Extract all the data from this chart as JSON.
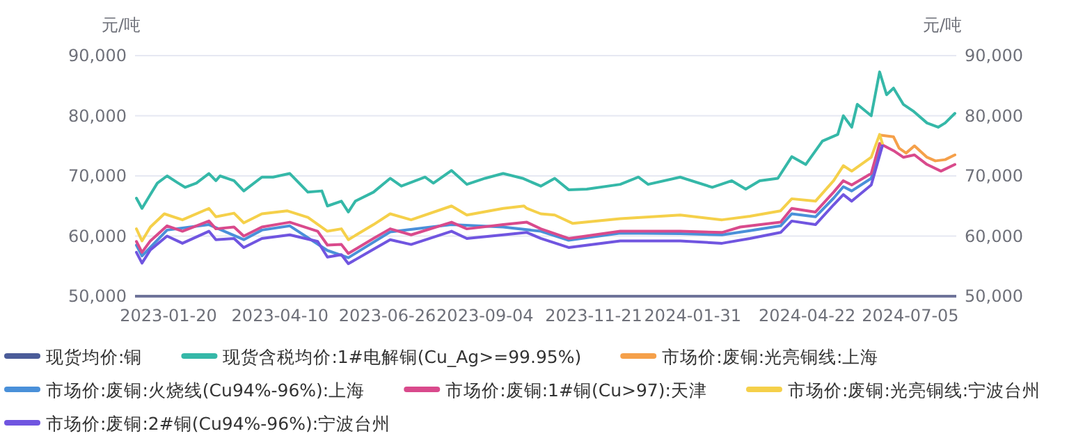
{
  "chart_data": {
    "type": "line",
    "ylabel": "元/吨",
    "y2label": "元/吨",
    "xlim": [
      "2022-12-27",
      "2024-08-07"
    ],
    "xticks": [
      "2023-01-20",
      "2023-04-10",
      "2023-06-26",
      "2023-09-04",
      "2023-11-21",
      "2024-01-31",
      "2024-04-22",
      "2024-07-05"
    ],
    "ylim": [
      50000,
      90000
    ],
    "yticks": [
      {
        "value": 50000,
        "label": "50,000"
      },
      {
        "value": 60000,
        "label": "60,000"
      },
      {
        "value": 70000,
        "label": "70,000"
      },
      {
        "value": 80000,
        "label": "80,000"
      },
      {
        "value": 90000,
        "label": "90,000"
      }
    ],
    "y2lim": [
      50000,
      90000
    ],
    "y2ticks": [
      {
        "value": 50000,
        "label": "50,000"
      },
      {
        "value": 60000,
        "label": "60,000"
      },
      {
        "value": 70000,
        "label": "70,000"
      },
      {
        "value": 80000,
        "label": "80,000"
      },
      {
        "value": 90000,
        "label": "90,000"
      }
    ],
    "grid": "y",
    "legend": "bottom",
    "marker": "none",
    "line_style": "solid",
    "series": [
      {
        "name": "现货均价:铜",
        "color": "#4b5c99"
      },
      {
        "name": "现货含税均价:1#电解铜(Cu_Ag>=99.95%)",
        "color": "#35b8a8",
        "x": [
          "2022-12-28",
          "2023-01-01",
          "2023-01-07",
          "2023-01-12",
          "2023-01-19",
          "2023-01-27",
          "2023-02-01",
          "2023-02-09",
          "2023-02-18",
          "2023-02-23",
          "2023-02-26",
          "2023-03-08",
          "2023-03-15",
          "2023-03-28",
          "2023-04-05",
          "2023-04-17",
          "2023-04-30",
          "2023-05-10",
          "2023-05-14",
          "2023-05-24",
          "2023-05-29",
          "2023-06-03",
          "2023-06-16",
          "2023-06-28",
          "2023-07-06",
          "2023-07-23",
          "2023-07-29",
          "2023-08-11",
          "2023-08-22",
          "2023-09-04",
          "2023-09-17",
          "2023-10-01",
          "2023-10-14",
          "2023-10-24",
          "2023-11-03",
          "2023-11-16",
          "2023-12-10",
          "2023-12-23",
          "2023-12-30",
          "2024-01-22",
          "2024-02-14",
          "2024-02-28",
          "2024-03-09",
          "2024-03-19",
          "2024-04-01",
          "2024-04-11",
          "2024-04-21",
          "2024-05-03",
          "2024-05-14",
          "2024-05-18",
          "2024-05-24",
          "2024-05-28",
          "2024-06-07",
          "2024-06-13",
          "2024-06-18",
          "2024-06-23",
          "2024-06-30",
          "2024-07-07",
          "2024-07-17",
          "2024-07-25",
          "2024-07-30",
          "2024-08-06"
        ],
        "values": [
          66300,
          64600,
          66900,
          68800,
          70000,
          68800,
          68100,
          68800,
          70400,
          69200,
          70000,
          69200,
          67500,
          69800,
          69800,
          70400,
          67300,
          67500,
          65000,
          65800,
          64000,
          65800,
          67300,
          69600,
          68300,
          69800,
          68800,
          70900,
          68600,
          69600,
          70400,
          69600,
          68300,
          69600,
          67700,
          67800,
          68600,
          69800,
          68600,
          69800,
          68100,
          69200,
          67800,
          69200,
          69600,
          73200,
          71900,
          75800,
          76900,
          80000,
          78100,
          81900,
          80000,
          87300,
          83500,
          84600,
          81900,
          80800,
          78800,
          78100,
          78800,
          80400
        ]
      },
      {
        "name": "市场价:废铜:光亮铜线:上海",
        "color": "#f5a04a",
        "x": [
          "2024-06-13",
          "2024-06-23",
          "2024-06-27",
          "2024-07-02",
          "2024-07-08",
          "2024-07-17",
          "2024-07-23",
          "2024-07-30",
          "2024-08-06"
        ],
        "values": [
          76800,
          76500,
          74600,
          73800,
          75000,
          73100,
          72500,
          72700,
          73500
        ]
      },
      {
        "name": "市场价:废铜:火烧线(Cu94%-96%):上海",
        "color": "#4a90d9",
        "x": [
          "2022-12-28",
          "2023-01-01",
          "2023-01-19",
          "2023-02-18",
          "2023-03-15",
          "2023-03-28",
          "2023-04-17",
          "2023-05-14",
          "2023-05-29",
          "2023-06-28",
          "2023-08-11",
          "2023-09-17",
          "2023-10-14",
          "2023-11-03",
          "2023-12-10",
          "2024-01-22",
          "2024-02-21",
          "2024-03-12",
          "2024-04-03",
          "2024-04-11",
          "2024-04-28",
          "2024-05-11",
          "2024-05-18",
          "2024-05-24",
          "2024-06-07",
          "2024-06-13"
        ],
        "values": [
          58500,
          56700,
          61000,
          61900,
          59400,
          61000,
          61700,
          57600,
          56400,
          60700,
          61900,
          61500,
          60800,
          59300,
          60500,
          60400,
          60200,
          60900,
          61700,
          63700,
          63200,
          66300,
          68200,
          67500,
          69600,
          74800
        ]
      },
      {
        "name": "市场价:废铜:1#铜(Cu>97):天津",
        "color": "#d94a8c",
        "x": [
          "2022-12-28",
          "2023-01-01",
          "2023-01-07",
          "2023-01-19",
          "2023-01-30",
          "2023-02-18",
          "2023-02-23",
          "2023-03-08",
          "2023-03-15",
          "2023-03-28",
          "2023-04-17",
          "2023-05-07",
          "2023-05-14",
          "2023-05-24",
          "2023-05-29",
          "2023-06-16",
          "2023-06-28",
          "2023-07-13",
          "2023-08-11",
          "2023-08-22",
          "2023-09-17",
          "2023-10-04",
          "2023-10-14",
          "2023-11-03",
          "2023-12-10",
          "2024-01-22",
          "2024-02-21",
          "2024-03-05",
          "2024-04-03",
          "2024-04-11",
          "2024-04-28",
          "2024-05-11",
          "2024-05-18",
          "2024-05-24",
          "2024-06-07",
          "2024-06-13",
          "2024-06-23",
          "2024-06-30",
          "2024-07-08",
          "2024-07-17",
          "2024-07-27",
          "2024-08-06"
        ],
        "values": [
          59100,
          57300,
          59200,
          61700,
          60800,
          62500,
          61200,
          61500,
          60000,
          61500,
          62300,
          60800,
          58500,
          58600,
          57100,
          59600,
          61200,
          60200,
          62300,
          61200,
          61900,
          62300,
          61200,
          59600,
          60800,
          60800,
          60600,
          61500,
          62300,
          64600,
          64000,
          67300,
          69200,
          68500,
          70400,
          75400,
          74200,
          73100,
          73500,
          71900,
          70800,
          71900
        ]
      },
      {
        "name": "市场价:废铜:光亮铜线:宁波台州",
        "color": "#f5d04a",
        "x": [
          "2022-12-28",
          "2023-01-01",
          "2023-01-07",
          "2023-01-17",
          "2023-01-30",
          "2023-02-18",
          "2023-02-23",
          "2023-03-08",
          "2023-03-15",
          "2023-03-28",
          "2023-04-15",
          "2023-04-30",
          "2023-05-14",
          "2023-05-24",
          "2023-05-29",
          "2023-06-16",
          "2023-06-28",
          "2023-07-13",
          "2023-08-11",
          "2023-08-22",
          "2023-09-17",
          "2023-10-02",
          "2023-10-04",
          "2023-10-14",
          "2023-10-24",
          "2023-11-06",
          "2023-12-10",
          "2024-01-22",
          "2024-02-21",
          "2024-03-12",
          "2024-04-03",
          "2024-04-11",
          "2024-04-28",
          "2024-05-11",
          "2024-05-18",
          "2024-05-24",
          "2024-06-07",
          "2024-06-13",
          "2024-06-15"
        ],
        "values": [
          61200,
          59200,
          61500,
          63700,
          62700,
          64600,
          63200,
          63800,
          62200,
          63700,
          64200,
          63100,
          60800,
          61200,
          59400,
          61900,
          63700,
          62700,
          65000,
          63500,
          64600,
          65000,
          64600,
          63700,
          63500,
          62100,
          62900,
          63500,
          62700,
          63300,
          64200,
          66200,
          65800,
          69200,
          71700,
          70800,
          73100,
          76900,
          75400
        ]
      },
      {
        "name": "市场价:废铜:2#铜(Cu94%-96%):宁波台州",
        "color": "#7055e0",
        "x": [
          "2022-12-28",
          "2023-01-01",
          "2023-01-07",
          "2023-01-19",
          "2023-01-30",
          "2023-02-18",
          "2023-02-23",
          "2023-03-08",
          "2023-03-15",
          "2023-03-28",
          "2023-04-17",
          "2023-05-07",
          "2023-05-14",
          "2023-05-24",
          "2023-05-29",
          "2023-06-16",
          "2023-06-28",
          "2023-07-13",
          "2023-08-11",
          "2023-08-22",
          "2023-09-17",
          "2023-10-04",
          "2023-10-14",
          "2023-11-03",
          "2023-12-10",
          "2024-01-22",
          "2024-02-21",
          "2024-03-12",
          "2024-04-03",
          "2024-04-11",
          "2024-04-28",
          "2024-05-11",
          "2024-05-18",
          "2024-05-24",
          "2024-06-07",
          "2024-06-15"
        ],
        "values": [
          57300,
          55500,
          57700,
          60000,
          58800,
          60800,
          59400,
          59600,
          58100,
          59600,
          60200,
          59100,
          56500,
          56900,
          55400,
          57800,
          59400,
          58600,
          60800,
          59600,
          60200,
          60600,
          59600,
          58100,
          59200,
          59200,
          58800,
          59600,
          60600,
          62500,
          61900,
          65200,
          66900,
          65800,
          68500,
          75000
        ]
      }
    ]
  }
}
